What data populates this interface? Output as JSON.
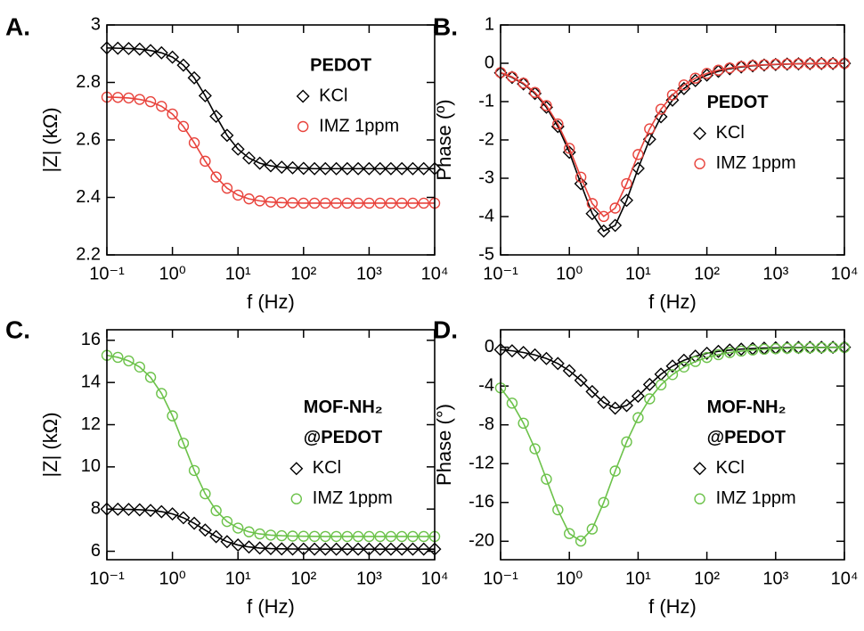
{
  "chart_data": [
    {
      "type": "line",
      "panel_label": "A.",
      "ylabel": "|Z| (kΩ)",
      "xlabel": "f (Hz)",
      "xscale": "log",
      "xlim": [
        0.1,
        10000
      ],
      "ylim": [
        2.2,
        3
      ],
      "xticks": [
        {
          "value": 0.1,
          "label": "10⁻¹"
        },
        {
          "value": 1,
          "label": "10⁰"
        },
        {
          "value": 10,
          "label": "10¹"
        },
        {
          "value": 100,
          "label": "10²"
        },
        {
          "value": 1000,
          "label": "10³"
        },
        {
          "value": 10000,
          "label": "10⁴"
        }
      ],
      "yticks": [
        2.2,
        2.4,
        2.6,
        2.8,
        3
      ],
      "legend_title": [
        "PEDOT"
      ],
      "legend_position": "upper right",
      "x": [
        0.1,
        0.147,
        0.215,
        0.316,
        0.464,
        0.681,
        1,
        1.47,
        2.15,
        3.16,
        4.64,
        6.81,
        10,
        14.7,
        21.5,
        31.6,
        46.4,
        68.1,
        100,
        147,
        215,
        316,
        464,
        681,
        1000,
        1470,
        2150,
        3160,
        4640,
        6810,
        10000
      ],
      "series": [
        {
          "name": "KCl",
          "color": "#000000",
          "marker": "diamond",
          "values": [
            2.92,
            2.919,
            2.918,
            2.916,
            2.911,
            2.903,
            2.888,
            2.86,
            2.816,
            2.754,
            2.682,
            2.616,
            2.568,
            2.537,
            2.519,
            2.51,
            2.505,
            2.503,
            2.501,
            2.5,
            2.5,
            2.5,
            2.5,
            2.5,
            2.5,
            2.5,
            2.5,
            2.5,
            2.5,
            2.5,
            2.5
          ]
        },
        {
          "name": "IMZ 1ppm",
          "color": "#e8433c",
          "marker": "circle",
          "values": [
            2.749,
            2.748,
            2.746,
            2.741,
            2.733,
            2.717,
            2.69,
            2.647,
            2.59,
            2.526,
            2.471,
            2.432,
            2.408,
            2.395,
            2.388,
            2.384,
            2.382,
            2.381,
            2.38,
            2.38,
            2.38,
            2.38,
            2.38,
            2.38,
            2.38,
            2.38,
            2.38,
            2.38,
            2.38,
            2.38,
            2.38
          ]
        }
      ]
    },
    {
      "type": "line",
      "panel_label": "B.",
      "ylabel": "Phase (º)",
      "xlabel": "f (Hz)",
      "xscale": "log",
      "xlim": [
        0.1,
        10000
      ],
      "ylim": [
        -5,
        1
      ],
      "xticks": [
        {
          "value": 0.1,
          "label": "10⁻¹"
        },
        {
          "value": 1,
          "label": "10⁰"
        },
        {
          "value": 10,
          "label": "10¹"
        },
        {
          "value": 100,
          "label": "10²"
        },
        {
          "value": 1000,
          "label": "10³"
        },
        {
          "value": 10000,
          "label": "10⁴"
        }
      ],
      "yticks": [
        -5,
        -4,
        -3,
        -2,
        -1,
        0,
        1
      ],
      "legend_title": [
        "PEDOT"
      ],
      "legend_position": "center right",
      "x": [
        0.1,
        0.147,
        0.215,
        0.316,
        0.464,
        0.681,
        1,
        1.47,
        2.15,
        3.16,
        4.64,
        6.81,
        10,
        14.7,
        21.5,
        31.6,
        46.4,
        68.1,
        100,
        147,
        215,
        316,
        464,
        681,
        1000,
        1470,
        2150,
        3160,
        4640,
        6810,
        10000
      ],
      "series": [
        {
          "name": "KCl",
          "color": "#000000",
          "marker": "diamond",
          "values": [
            -0.251,
            -0.369,
            -0.538,
            -0.789,
            -1.147,
            -1.651,
            -2.322,
            -3.143,
            -3.923,
            -4.378,
            -4.231,
            -3.577,
            -2.744,
            -1.983,
            -1.396,
            -0.963,
            -0.66,
            -0.451,
            -0.308,
            -0.21,
            -0.143,
            -0.097,
            -0.066,
            -0.045,
            -0.031,
            -0.021,
            -0.014,
            -0.01,
            -0.007,
            -0.005,
            -0.003
          ]
        },
        {
          "name": "IMZ 1ppm",
          "color": "#e8433c",
          "marker": "circle",
          "values": [
            -0.242,
            -0.355,
            -0.52,
            -0.76,
            -1.103,
            -1.584,
            -2.22,
            -2.972,
            -3.66,
            -3.996,
            -3.779,
            -3.14,
            -2.381,
            -1.711,
            -1.199,
            -0.826,
            -0.566,
            -0.388,
            -0.264,
            -0.18,
            -0.123,
            -0.084,
            -0.057,
            -0.039,
            -0.026,
            -0.018,
            -0.012,
            -0.008,
            -0.006,
            -0.004,
            -0.003
          ]
        }
      ]
    },
    {
      "type": "line",
      "panel_label": "C.",
      "ylabel": "|Z| (kΩ)",
      "xlabel": "f (Hz)",
      "xscale": "log",
      "xlim": [
        0.1,
        10000
      ],
      "ylim": [
        5.6,
        16.5
      ],
      "xticks": [
        {
          "value": 0.1,
          "label": "10⁻¹"
        },
        {
          "value": 1,
          "label": "10⁰"
        },
        {
          "value": 10,
          "label": "10¹"
        },
        {
          "value": 100,
          "label": "10²"
        },
        {
          "value": 1000,
          "label": "10³"
        },
        {
          "value": 10000,
          "label": "10⁴"
        }
      ],
      "yticks": [
        6,
        8,
        10,
        12,
        14,
        16
      ],
      "legend_title": [
        "MOF-NH₂",
        "@PEDOT"
      ],
      "legend_position": "center right",
      "x": [
        0.1,
        0.147,
        0.215,
        0.316,
        0.464,
        0.681,
        1,
        1.47,
        2.15,
        3.16,
        4.64,
        6.81,
        10,
        14.7,
        21.5,
        31.6,
        46.4,
        68.1,
        100,
        147,
        215,
        316,
        464,
        681,
        1000,
        1470,
        2150,
        3160,
        4640,
        6810,
        10000
      ],
      "series": [
        {
          "name": "KCl",
          "color": "#000000",
          "marker": "diamond",
          "values": [
            7.996,
            7.992,
            7.984,
            7.968,
            7.936,
            7.877,
            7.77,
            7.588,
            7.325,
            7.004,
            6.694,
            6.454,
            6.295,
            6.203,
            6.153,
            6.127,
            6.113,
            6.107,
            6.104,
            6.102,
            6.101,
            6.1,
            6.1,
            6.1,
            6.1,
            6.1,
            6.1,
            6.1,
            6.1,
            6.1,
            6.1
          ]
        },
        {
          "name": "IMZ 1ppm",
          "color": "#6cc24a",
          "marker": "circle",
          "values": [
            15.287,
            15.193,
            15.026,
            14.734,
            14.245,
            13.481,
            12.418,
            11.121,
            9.829,
            8.725,
            7.924,
            7.41,
            7.099,
            6.92,
            6.821,
            6.766,
            6.737,
            6.72,
            6.711,
            6.706,
            6.703,
            6.702,
            6.701,
            6.7,
            6.7,
            6.7,
            6.7,
            6.7,
            6.7,
            6.7,
            6.7
          ]
        }
      ]
    },
    {
      "type": "line",
      "panel_label": "D.",
      "ylabel": "Phase (°)",
      "xlabel": "f (Hz)",
      "xscale": "log",
      "xlim": [
        0.1,
        10000
      ],
      "ylim": [
        -21.9,
        1.8
      ],
      "xticks": [
        {
          "value": 0.1,
          "label": "10⁻¹"
        },
        {
          "value": 1,
          "label": "10⁰"
        },
        {
          "value": 10,
          "label": "10¹"
        },
        {
          "value": 100,
          "label": "10²"
        },
        {
          "value": 1000,
          "label": "10³"
        },
        {
          "value": 10000,
          "label": "10⁴"
        }
      ],
      "yticks": [
        -20,
        -16,
        -12,
        -8,
        -4,
        0
      ],
      "legend_title": [
        "MOF-NH₂",
        "@PEDOT"
      ],
      "legend_position": "center right",
      "x": [
        0.1,
        0.147,
        0.215,
        0.316,
        0.464,
        0.681,
        1,
        1.47,
        2.15,
        3.16,
        4.64,
        6.81,
        10,
        14.7,
        21.5,
        31.6,
        46.4,
        68.1,
        100,
        147,
        215,
        316,
        464,
        681,
        1000,
        1470,
        2150,
        3160,
        4640,
        6810,
        10000
      ],
      "series": [
        {
          "name": "KCl",
          "color": "#000000",
          "marker": "diamond",
          "values": [
            -0.252,
            -0.371,
            -0.541,
            -0.793,
            -1.159,
            -1.684,
            -2.423,
            -3.41,
            -4.572,
            -5.691,
            -6.281,
            -6.011,
            -5.04,
            -3.841,
            -2.78,
            -1.945,
            -1.342,
            -0.92,
            -0.628,
            -0.428,
            -0.293,
            -0.199,
            -0.136,
            -0.093,
            -0.063,
            -0.043,
            -0.029,
            -0.02,
            -0.014,
            -0.009,
            -0.006
          ]
        },
        {
          "name": "IMZ 1ppm",
          "color": "#6cc24a",
          "marker": "circle",
          "values": [
            -4.197,
            -5.764,
            -7.83,
            -10.47,
            -13.6,
            -16.76,
            -19.21,
            -19.98,
            -18.74,
            -16,
            -12.76,
            -9.76,
            -7.26,
            -5.32,
            -3.88,
            -2.82,
            -2.04,
            -1.47,
            -1.06,
            -0.766,
            -0.553,
            -0.399,
            -0.288,
            -0.208,
            -0.15,
            -0.108,
            -0.078,
            -0.056,
            -0.041,
            -0.029,
            -0.021
          ]
        }
      ]
    }
  ]
}
